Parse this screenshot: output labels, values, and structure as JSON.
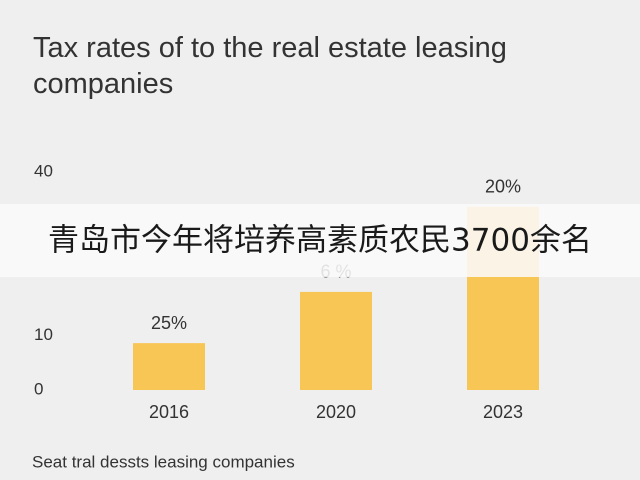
{
  "chart_data": {
    "type": "bar",
    "title": "Tax rates of to the real estate leasing companies",
    "x_label": "Seat tral dessts leasing companies",
    "categories": [
      "2016",
      "2020",
      "2023"
    ],
    "values": [
      8.6,
      18,
      33.6
    ],
    "color": "#f8c655",
    "ylim": [
      0,
      40
    ],
    "yticks": [
      0,
      10,
      40
    ],
    "annotations": [
      "25%",
      "6 %",
      "20%"
    ]
  },
  "overlay_text": "青岛市今年将培养高素质农民3700余名"
}
